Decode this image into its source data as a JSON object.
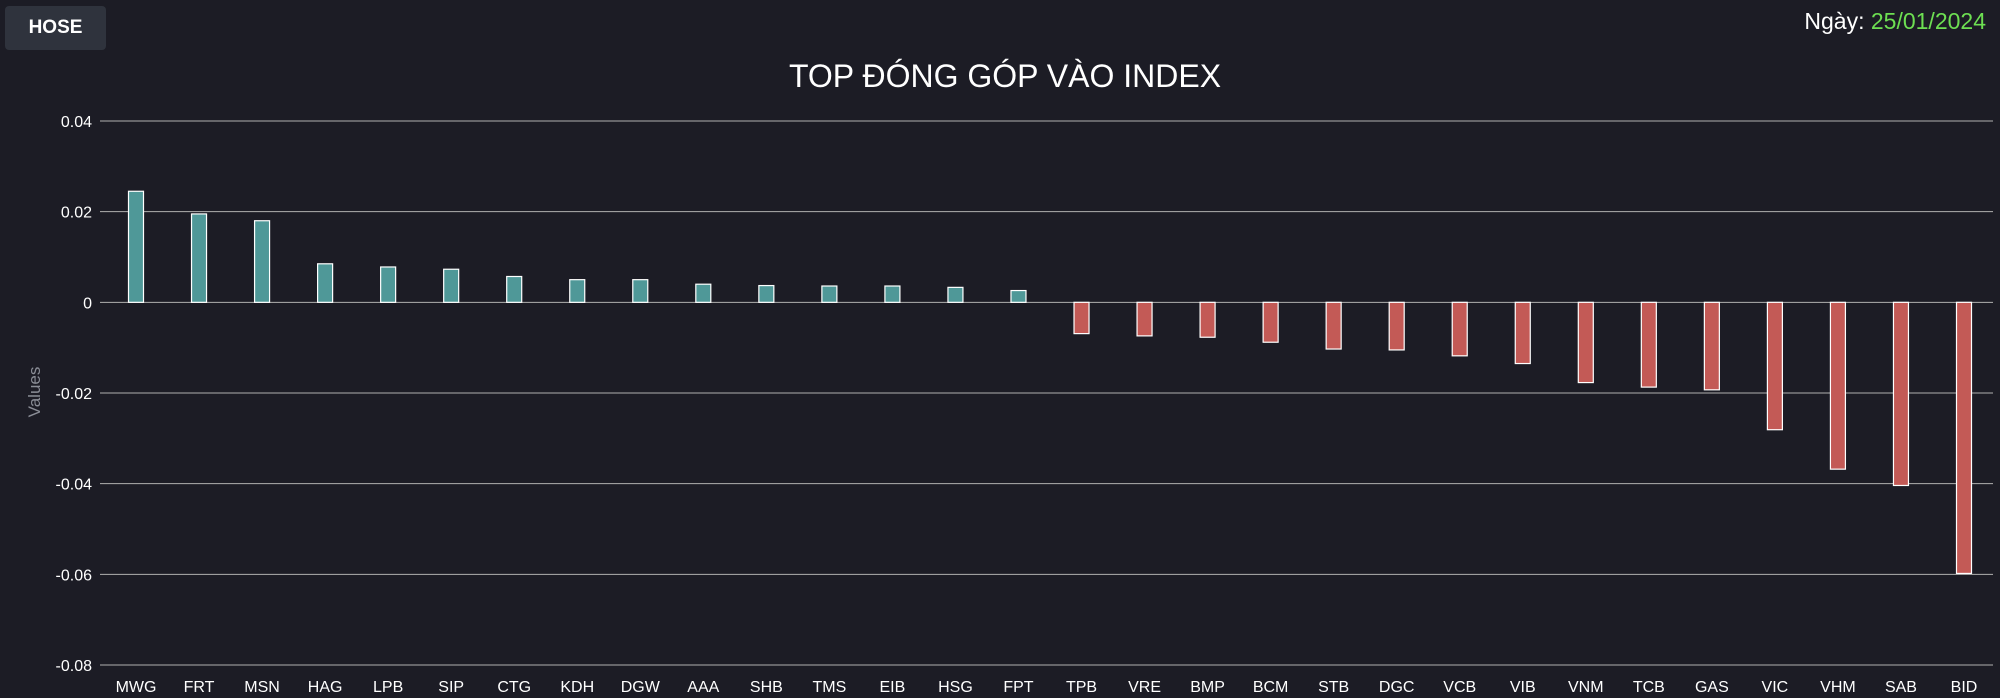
{
  "header": {
    "exchange_button_label": "HOSE",
    "date_label": "Ngày:",
    "date_value": "25/01/2024"
  },
  "colors": {
    "background": "#1c1c25",
    "positive_bar": "#4f9898",
    "negative_bar": "#c35a56",
    "bar_border": "#ffffff",
    "grid": "#b0b0b0",
    "date_accent": "#6ddf52"
  },
  "chart_data": {
    "type": "bar",
    "title": "TOP ĐÓNG GÓP VÀO INDEX",
    "xlabel": "",
    "ylabel": "Values",
    "ylim": [
      -0.08,
      0.04
    ],
    "yticks": [
      0.04,
      0.02,
      0,
      -0.02,
      -0.04,
      -0.06,
      -0.08
    ],
    "ytick_labels": [
      "0.04",
      "0.02",
      "0",
      "-0.02",
      "-0.04",
      "-0.06",
      "-0.08"
    ],
    "grid": true,
    "categories": [
      "MWG",
      "FRT",
      "MSN",
      "HAG",
      "LPB",
      "SIP",
      "CTG",
      "KDH",
      "DGW",
      "AAA",
      "SHB",
      "TMS",
      "EIB",
      "HSG",
      "FPT",
      "TPB",
      "VRE",
      "BMP",
      "BCM",
      "STB",
      "DGC",
      "VCB",
      "VIB",
      "VNM",
      "TCB",
      "GAS",
      "VIC",
      "VHM",
      "SAB",
      "BID"
    ],
    "values": [
      0.0245,
      0.0195,
      0.018,
      0.0085,
      0.0078,
      0.0073,
      0.0057,
      0.005,
      0.005,
      0.004,
      0.0037,
      0.0036,
      0.0036,
      0.0033,
      0.0026,
      -0.0069,
      -0.0074,
      -0.0077,
      -0.0088,
      -0.0103,
      -0.0105,
      -0.0118,
      -0.0135,
      -0.0177,
      -0.0187,
      -0.0193,
      -0.0281,
      -0.0368,
      -0.0404,
      -0.0598
    ]
  }
}
